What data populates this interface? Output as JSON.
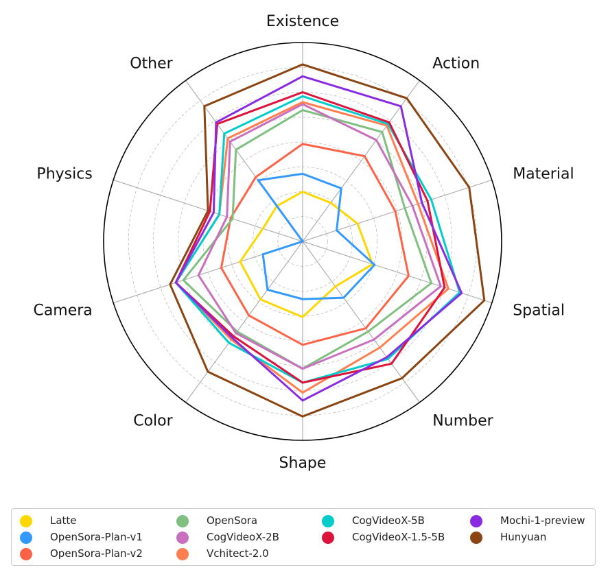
{
  "chart_data": {
    "type": "radar",
    "axes": [
      "Existence",
      "Action",
      "Material",
      "Spatial",
      "Number",
      "Shape",
      "Color",
      "Camera",
      "Physics",
      "Other"
    ],
    "rlim": [
      0,
      1
    ],
    "grid": true,
    "legend_position": "bottom",
    "series": [
      {
        "name": "Latte",
        "color": "#FFD700",
        "values": [
          0.25,
          0.24,
          0.29,
          0.37,
          0.28,
          0.38,
          0.36,
          0.33,
          0.21,
          0.22
        ]
      },
      {
        "name": "OpenSora-Plan-v1",
        "color": "#3399FF",
        "values": [
          0.34,
          0.33,
          0.18,
          0.38,
          0.35,
          0.29,
          0.3,
          0.21,
          0.0,
          0.38
        ]
      },
      {
        "name": "OpenSora-Plan-v2",
        "color": "#FF6347",
        "values": [
          0.49,
          0.53,
          0.49,
          0.56,
          0.54,
          0.52,
          0.46,
          0.43,
          0.38,
          0.4
        ]
      },
      {
        "name": "OpenSora",
        "color": "#7FBF7F",
        "values": [
          0.66,
          0.68,
          0.54,
          0.68,
          0.56,
          0.64,
          0.56,
          0.63,
          0.37,
          0.57
        ]
      },
      {
        "name": "CogVideoX-2B",
        "color": "#C86FC0",
        "values": [
          0.69,
          0.63,
          0.58,
          0.73,
          0.61,
          0.64,
          0.57,
          0.55,
          0.4,
          0.62
        ]
      },
      {
        "name": "Vchitect-2.0",
        "color": "#FF7F50",
        "values": [
          0.7,
          0.72,
          0.61,
          0.77,
          0.66,
          0.76,
          0.61,
          0.67,
          0.44,
          0.64
        ]
      },
      {
        "name": "CogVideoX-5B",
        "color": "#00CCCC",
        "values": [
          0.73,
          0.73,
          0.68,
          0.83,
          0.73,
          0.71,
          0.63,
          0.67,
          0.44,
          0.67
        ]
      },
      {
        "name": "CogVideoX-1.5-5B",
        "color": "#DC143C",
        "values": [
          0.75,
          0.74,
          0.66,
          0.75,
          0.76,
          0.71,
          0.59,
          0.67,
          0.49,
          0.73
        ]
      },
      {
        "name": "Mochi-1-preview",
        "color": "#8A2BE2",
        "values": [
          0.83,
          0.84,
          0.63,
          0.84,
          0.72,
          0.8,
          0.6,
          0.67,
          0.47,
          0.74
        ]
      },
      {
        "name": "Hunyuan",
        "color": "#8B4513",
        "values": [
          0.89,
          0.89,
          0.88,
          0.96,
          0.85,
          0.88,
          0.81,
          0.7,
          0.5,
          0.84
        ]
      }
    ]
  },
  "legend": {
    "entries": [
      {
        "label": "Latte",
        "color": "#FFD700"
      },
      {
        "label": "OpenSora-Plan-v1",
        "color": "#3399FF"
      },
      {
        "label": "OpenSora-Plan-v2",
        "color": "#FF6347"
      },
      {
        "label": "OpenSora",
        "color": "#7FBF7F"
      },
      {
        "label": "CogVideoX-2B",
        "color": "#C86FC0"
      },
      {
        "label": "Vchitect-2.0",
        "color": "#FF7F50"
      },
      {
        "label": "CogVideoX-5B",
        "color": "#00CCCC"
      },
      {
        "label": "CogVideoX-1.5-5B",
        "color": "#DC143C"
      },
      {
        "label": "Mochi-1-preview",
        "color": "#8A2BE2"
      },
      {
        "label": "Hunyuan",
        "color": "#8B4513"
      }
    ]
  }
}
